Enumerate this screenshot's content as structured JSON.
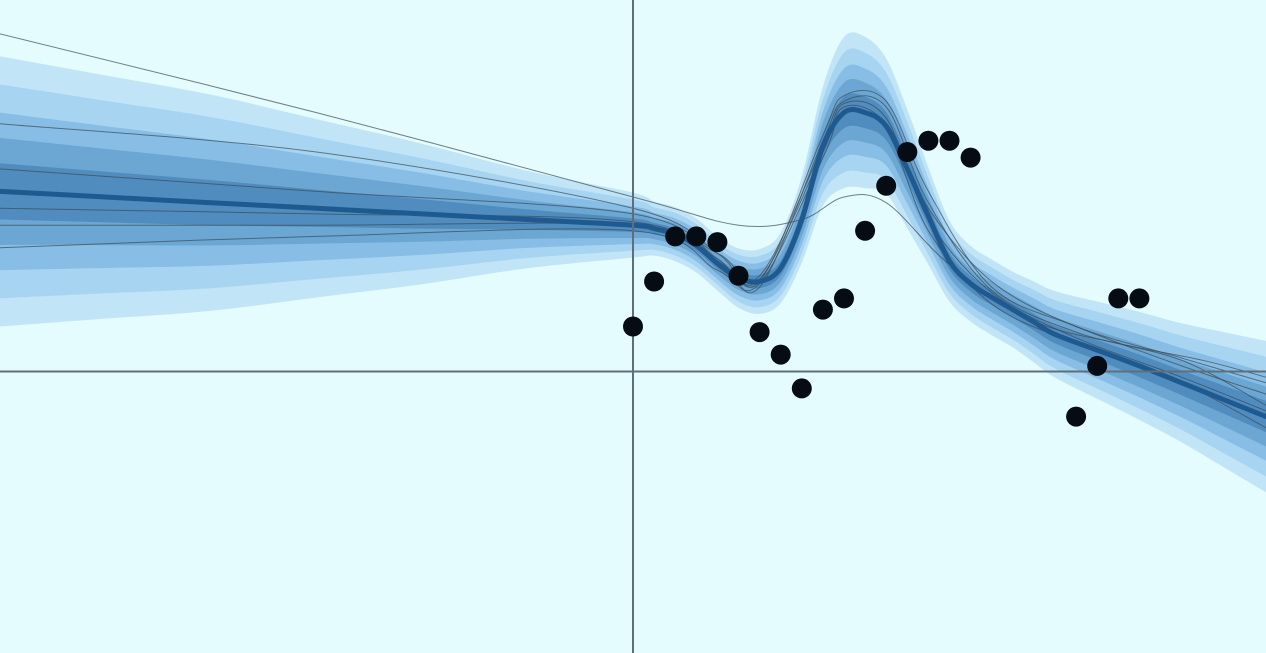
{
  "chart_data": {
    "type": "line",
    "title": "",
    "xlabel": "",
    "ylabel": "",
    "xlim": [
      -3.0,
      3.0
    ],
    "ylim": [
      -2.5,
      3.3
    ],
    "grid": false,
    "axes_lines_at_zero": true,
    "colors": {
      "background": "#e4fcfd",
      "axis": "#5f6f7a",
      "band_outer": "#bfe4f7",
      "band_2": "#a5d4f0",
      "band_3": "#86bde4",
      "band_4": "#6aa5d2",
      "band_inner": "#4f8bbd",
      "mean_line": "#1e5a90",
      "sample_lines": "#3a4a55",
      "points": "#050c14"
    },
    "posterior_bands": {
      "x": [
        -3.0,
        -2.5,
        -2.0,
        -1.5,
        -1.0,
        -0.5,
        0.0,
        0.1,
        0.2,
        0.3,
        0.4,
        0.5,
        0.6,
        0.7,
        0.8,
        0.9,
        1.0,
        1.1,
        1.2,
        1.3,
        1.4,
        1.5,
        1.6,
        1.7,
        1.8,
        1.9,
        2.0,
        2.2,
        2.4,
        2.6,
        2.8,
        3.0
      ],
      "mean": [
        1.6,
        1.55,
        1.5,
        1.45,
        1.4,
        1.35,
        1.3,
        1.27,
        1.22,
        1.12,
        0.96,
        0.83,
        0.8,
        0.92,
        1.35,
        2.0,
        2.3,
        2.3,
        2.18,
        1.8,
        1.38,
        0.98,
        0.78,
        0.66,
        0.55,
        0.44,
        0.33,
        0.19,
        0.05,
        -0.1,
        -0.25,
        -0.4
      ],
      "sd": [
        0.5,
        0.45,
        0.4,
        0.33,
        0.26,
        0.18,
        0.12,
        0.1,
        0.1,
        0.1,
        0.1,
        0.11,
        0.12,
        0.13,
        0.16,
        0.22,
        0.28,
        0.28,
        0.25,
        0.22,
        0.18,
        0.15,
        0.14,
        0.14,
        0.14,
        0.15,
        0.16,
        0.18,
        0.2,
        0.22,
        0.25,
        0.28
      ]
    },
    "sample_curves": [
      {
        "x": [
          -3.0,
          -1.5,
          0.0,
          0.5,
          0.8,
          1.0,
          1.2,
          1.5,
          1.9,
          2.3,
          2.7,
          3.0
        ],
        "y": [
          3.0,
          2.3,
          1.55,
          1.3,
          1.35,
          1.55,
          1.5,
          0.95,
          0.45,
          0.25,
          0.1,
          -0.05
        ]
      },
      {
        "x": [
          -3.0,
          -1.5,
          0.0,
          0.4,
          0.6,
          0.9,
          1.0,
          1.2,
          1.4,
          1.7,
          2.1,
          2.6,
          3.0
        ],
        "y": [
          2.2,
          1.95,
          1.45,
          1.05,
          0.8,
          2.1,
          2.45,
          2.4,
          1.6,
          0.75,
          0.4,
          0.05,
          -0.2
        ]
      },
      {
        "x": [
          -3.0,
          -1.5,
          0.0,
          0.4,
          0.6,
          0.9,
          1.0,
          1.2,
          1.4,
          1.7,
          2.1,
          2.6,
          3.0
        ],
        "y": [
          1.8,
          1.6,
          1.4,
          1.0,
          0.75,
          2.05,
          2.4,
          2.35,
          1.5,
          0.72,
          0.35,
          0.1,
          -0.3
        ]
      },
      {
        "x": [
          -3.0,
          -1.5,
          0.0,
          0.4,
          0.6,
          0.9,
          1.0,
          1.2,
          1.4,
          1.7,
          2.1,
          2.6,
          3.0
        ],
        "y": [
          1.45,
          1.4,
          1.33,
          0.98,
          0.82,
          1.95,
          2.35,
          2.2,
          1.45,
          0.8,
          0.4,
          0.12,
          -0.1
        ]
      },
      {
        "x": [
          -3.0,
          -1.5,
          0.0,
          0.4,
          0.6,
          0.9,
          1.0,
          1.2,
          1.4,
          1.7,
          2.1,
          2.6,
          3.0
        ],
        "y": [
          1.1,
          1.2,
          1.25,
          0.9,
          0.78,
          1.9,
          2.3,
          2.15,
          1.25,
          0.6,
          0.25,
          -0.1,
          -0.5
        ]
      },
      {
        "x": [
          -3.0,
          -1.5,
          0.0,
          0.4,
          0.6,
          0.9,
          1.0,
          1.2,
          1.4,
          1.7,
          2.1,
          2.6,
          3.0
        ],
        "y": [
          1.3,
          1.3,
          1.3,
          1.05,
          0.85,
          2.0,
          2.38,
          2.25,
          1.35,
          0.7,
          0.3,
          -0.05,
          -0.35
        ]
      }
    ],
    "points": {
      "x": [
        0.0,
        0.1,
        0.2,
        0.3,
        0.4,
        0.5,
        0.6,
        0.7,
        0.8,
        0.9,
        1.0,
        1.1,
        1.2,
        1.3,
        1.4,
        1.5,
        1.6,
        2.1,
        2.2,
        2.3,
        2.4
      ],
      "y": [
        0.4,
        0.8,
        1.2,
        1.2,
        1.15,
        0.85,
        0.35,
        0.15,
        -0.15,
        0.55,
        0.65,
        1.25,
        1.65,
        1.95,
        2.05,
        2.05,
        1.9,
        -0.4,
        0.05,
        0.65,
        0.65
      ]
    }
  }
}
